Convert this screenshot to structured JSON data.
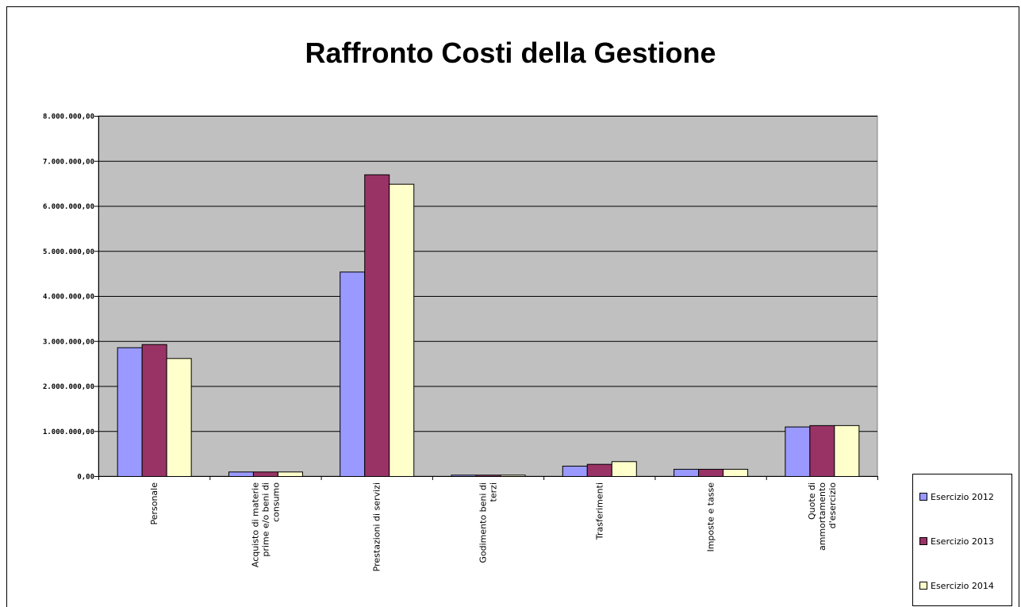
{
  "chart_data": {
    "type": "bar",
    "title": "Raffronto Costi della Gestione",
    "xlabel": "",
    "ylabel": "",
    "ylim": [
      0,
      8000000
    ],
    "yticks": [
      0,
      1000000,
      2000000,
      3000000,
      4000000,
      5000000,
      6000000,
      7000000,
      8000000
    ],
    "ytick_labels": [
      "0,00",
      "1.000.000,00",
      "2.000.000,00",
      "3.000.000,00",
      "4.000.000,00",
      "5.000.000,00",
      "6.000.000,00",
      "7.000.000,00",
      "8.000.000,00"
    ],
    "grid": true,
    "legend_position": "right-bottom",
    "categories": [
      [
        "Personale"
      ],
      [
        "Acquisto di materie",
        "prime e/o beni di",
        "consumo"
      ],
      [
        "Prestazioni di servizi"
      ],
      [
        "Godimento beni di",
        "terzi"
      ],
      [
        "Trasferimenti"
      ],
      [
        "Imposte e tasse"
      ],
      [
        "Quote di",
        "ammortamento",
        "d'esercizio"
      ]
    ],
    "series": [
      {
        "name": "Esercizio 2012",
        "color": "#9999ff",
        "values": [
          2860000,
          100000,
          4540000,
          30000,
          230000,
          160000,
          1100000
        ]
      },
      {
        "name": "Esercizio 2013",
        "color": "#993366",
        "values": [
          2930000,
          100000,
          6700000,
          30000,
          270000,
          160000,
          1130000
        ]
      },
      {
        "name": "Esercizio 2014",
        "color": "#ffffcc",
        "values": [
          2620000,
          100000,
          6490000,
          30000,
          330000,
          160000,
          1130000
        ]
      }
    ],
    "plot_background": "#c0c0c0"
  }
}
